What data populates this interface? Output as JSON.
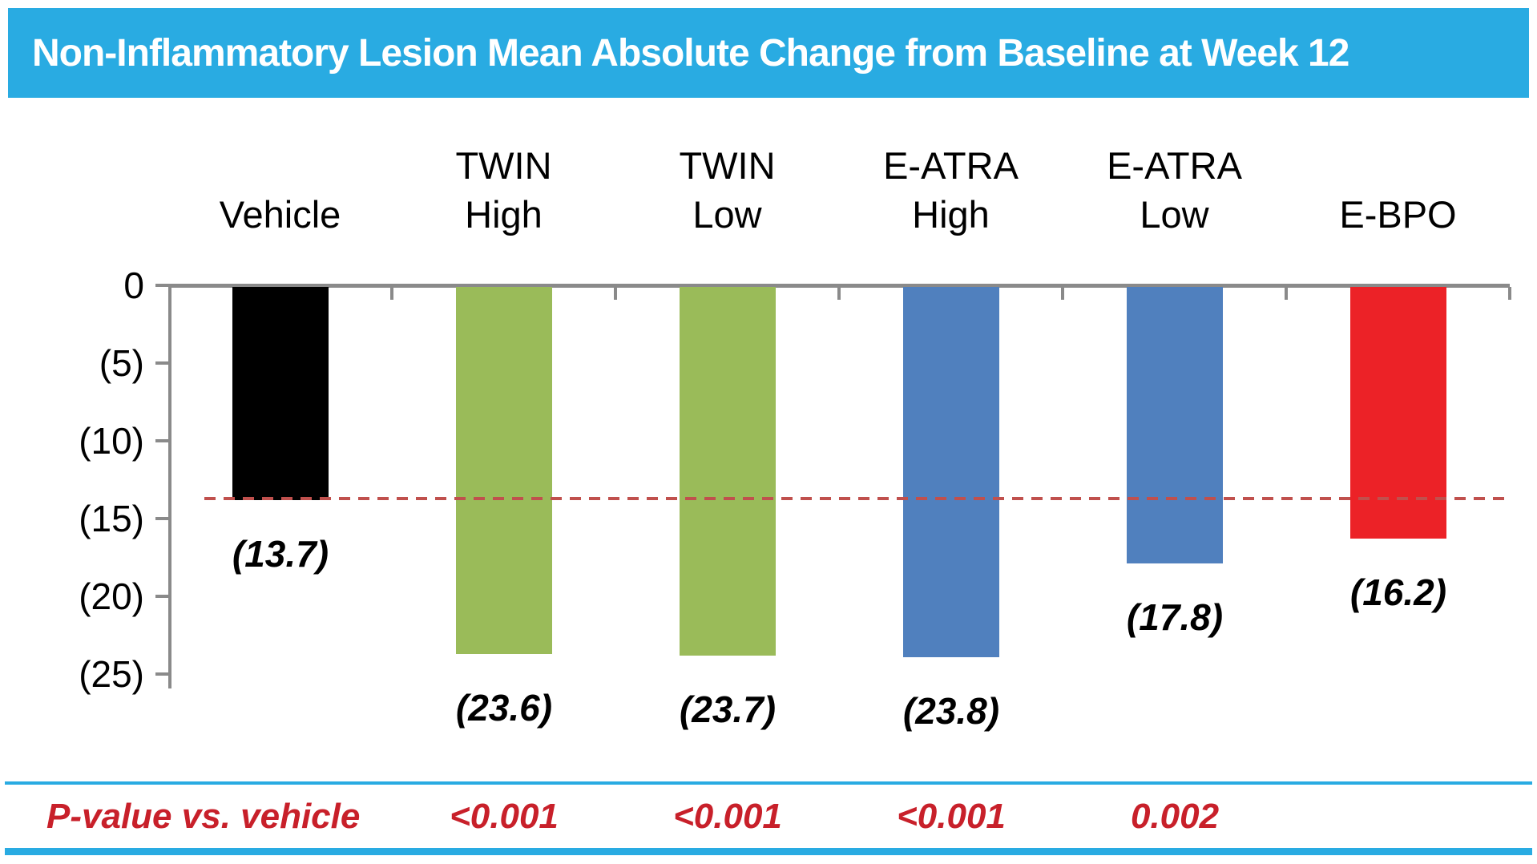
{
  "chart_data": {
    "type": "bar",
    "title": "Non-Inflammatory Lesion Mean Absolute Change from Baseline at Week 12",
    "categories": [
      "Vehicle",
      "TWIN\nHigh",
      "TWIN\nLow",
      "E-ATRA\nHigh",
      "E-ATRA\nLow",
      "E-BPO"
    ],
    "values": [
      -13.7,
      -23.6,
      -23.7,
      -23.8,
      -17.8,
      -16.2
    ],
    "value_labels": [
      "(13.7)",
      "(23.6)",
      "(23.7)",
      "(23.8)",
      "(17.8)",
      "(16.2)"
    ],
    "bar_colors": [
      "#000000",
      "#9ABB59",
      "#9ABB59",
      "#5080BE",
      "#5080BE",
      "#EC2227"
    ],
    "xlabel": "",
    "ylabel": "",
    "ylim": [
      -25,
      0
    ],
    "y_ticks": [
      "0",
      "(5)",
      "(10)",
      "(15)",
      "(20)",
      "(25)"
    ],
    "y_tick_values": [
      0,
      -5,
      -10,
      -15,
      -20,
      -25
    ],
    "grid": false,
    "legend": "none",
    "reference_line": {
      "value": -13.7,
      "style": "dashed",
      "color": "#C0504D",
      "meaning": "vehicle response level"
    }
  },
  "pvalue_row": {
    "label": "P-value vs. vehicle",
    "values": [
      "",
      "<0.001",
      "<0.001",
      "<0.001",
      "0.002",
      ""
    ]
  },
  "colors": {
    "banner_bg": "#29ABE2",
    "banner_text": "#FFFFFF",
    "axis": "#8A8A8A",
    "pvalue_text": "#C8202A",
    "divider": "#29ABE2",
    "reference_dash": "#C0504D"
  }
}
